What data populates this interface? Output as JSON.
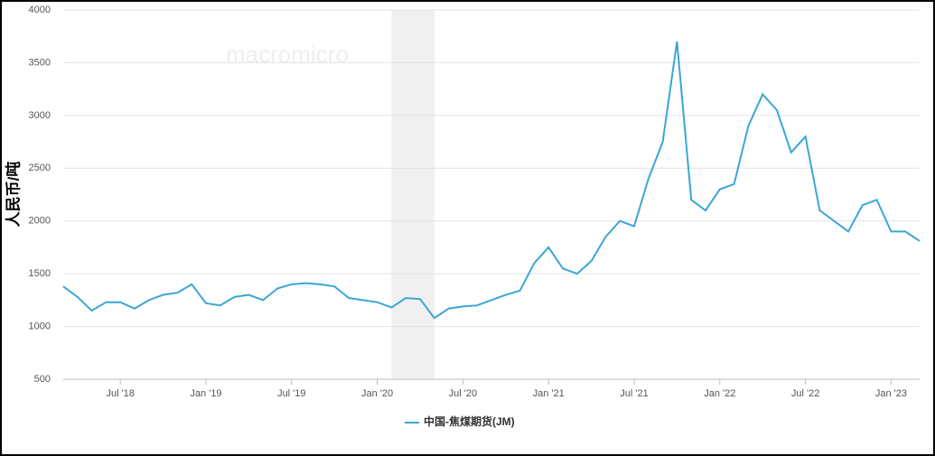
{
  "chart_data": {
    "type": "line",
    "y_label": "人民币/吨",
    "watermark": "macromicro",
    "x": [
      "2018-03",
      "2018-04",
      "2018-05",
      "2018-06",
      "2018-07",
      "2018-08",
      "2018-09",
      "2018-10",
      "2018-11",
      "2018-12",
      "2019-01",
      "2019-02",
      "2019-03",
      "2019-04",
      "2019-05",
      "2019-06",
      "2019-07",
      "2019-08",
      "2019-09",
      "2019-10",
      "2019-11",
      "2019-12",
      "2020-01",
      "2020-02",
      "2020-03",
      "2020-04",
      "2020-05",
      "2020-06",
      "2020-07",
      "2020-08",
      "2020-09",
      "2020-10",
      "2020-11",
      "2020-12",
      "2021-01",
      "2021-02",
      "2021-03",
      "2021-04",
      "2021-05",
      "2021-06",
      "2021-07",
      "2021-08",
      "2021-09",
      "2021-10",
      "2021-11",
      "2021-12",
      "2022-01",
      "2022-02",
      "2022-03",
      "2022-04",
      "2022-05",
      "2022-06",
      "2022-07",
      "2022-08",
      "2022-09",
      "2022-10",
      "2022-11",
      "2022-12",
      "2023-01",
      "2023-02",
      "2023-03"
    ],
    "series": [
      {
        "name": "中国-焦煤期货(JM)",
        "color": "#3ba6d6",
        "values": [
          1380,
          1280,
          1150,
          1230,
          1230,
          1170,
          1250,
          1300,
          1320,
          1400,
          1220,
          1200,
          1280,
          1300,
          1250,
          1360,
          1400,
          1410,
          1400,
          1380,
          1270,
          1250,
          1230,
          1180,
          1270,
          1260,
          1080,
          1170,
          1190,
          1200,
          1250,
          1300,
          1340,
          1600,
          1750,
          1550,
          1500,
          1620,
          1850,
          2000,
          1950,
          2400,
          2750,
          3700,
          2200,
          2100,
          2300,
          2350,
          2900,
          3200,
          3050,
          2650,
          2800,
          2100,
          2000,
          1900,
          2150,
          2200,
          1900,
          1900,
          1810
        ]
      }
    ],
    "xlim": [
      "2018-03",
      "2023-03"
    ],
    "xticks": [
      {
        "value": "2018-07",
        "label": "Jul '18"
      },
      {
        "value": "2019-01",
        "label": "Jan '19"
      },
      {
        "value": "2019-07",
        "label": "Jul '19"
      },
      {
        "value": "2020-01",
        "label": "Jan '20"
      },
      {
        "value": "2020-07",
        "label": "Jul '20"
      },
      {
        "value": "2021-01",
        "label": "Jan '21"
      },
      {
        "value": "2021-07",
        "label": "Jul '21"
      },
      {
        "value": "2022-01",
        "label": "Jan '22"
      },
      {
        "value": "2022-07",
        "label": "Jul '22"
      },
      {
        "value": "2023-01",
        "label": "Jan '23"
      }
    ],
    "ylim": [
      500,
      4000
    ],
    "yticks": [
      500,
      1000,
      1500,
      2000,
      2500,
      3000,
      3500,
      4000
    ],
    "shaded_range": [
      "2020-02",
      "2020-05"
    ],
    "grid": true,
    "legend": "bottom"
  }
}
